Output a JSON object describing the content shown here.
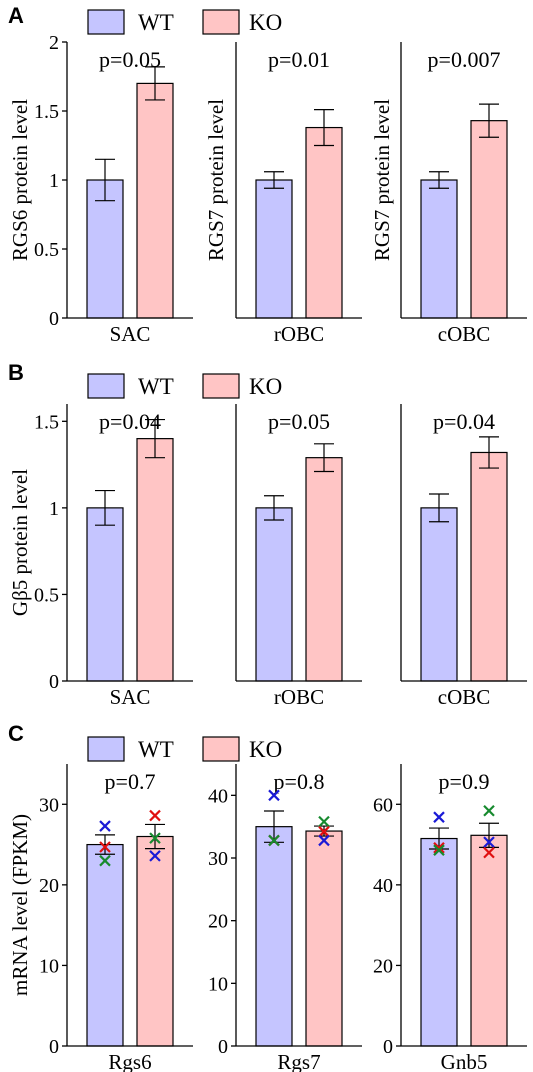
{
  "legend": {
    "wt": "WT",
    "ko": "KO"
  },
  "colors": {
    "wt": "#c5c5ff",
    "ko": "#ffc5c5",
    "x_blue": "#1a1ad6",
    "x_red": "#e01010",
    "x_green": "#178a2e"
  },
  "chart_data": [
    {
      "panel": "A",
      "type": "bar",
      "ylabel": "RGS6 protein level",
      "category": "SAC",
      "pvalue": "p=0.05",
      "ylim": [
        0,
        2
      ],
      "yticks": [
        "0",
        "0.5",
        "1",
        "1.5",
        "2"
      ],
      "series": [
        {
          "name": "WT",
          "value": 1.0,
          "err": 0.15
        },
        {
          "name": "KO",
          "value": 1.7,
          "err": 0.12
        }
      ]
    },
    {
      "panel": "A",
      "type": "bar",
      "ylabel": "RGS7 protein level",
      "category": "rOBC",
      "pvalue": "p=0.01",
      "ylim": [
        0,
        2
      ],
      "series": [
        {
          "name": "WT",
          "value": 1.0,
          "err": 0.06
        },
        {
          "name": "KO",
          "value": 1.38,
          "err": 0.13
        }
      ]
    },
    {
      "panel": "A",
      "type": "bar",
      "ylabel": "RGS7 protein level",
      "category": "cOBC",
      "pvalue": "p=0.007",
      "ylim": [
        0,
        2
      ],
      "series": [
        {
          "name": "WT",
          "value": 1.0,
          "err": 0.06
        },
        {
          "name": "KO",
          "value": 1.43,
          "err": 0.12
        }
      ]
    },
    {
      "panel": "B",
      "type": "bar",
      "ylabel": "Gβ5 protein level",
      "category": "SAC",
      "pvalue": "p=0.04",
      "ylim": [
        0,
        1.6
      ],
      "yticks": [
        "0",
        "0.5",
        "1",
        "1.5"
      ],
      "series": [
        {
          "name": "WT",
          "value": 1.0,
          "err": 0.1
        },
        {
          "name": "KO",
          "value": 1.4,
          "err": 0.11
        }
      ]
    },
    {
      "panel": "B",
      "type": "bar",
      "category": "rOBC",
      "pvalue": "p=0.05",
      "ylim": [
        0,
        1.6
      ],
      "series": [
        {
          "name": "WT",
          "value": 1.0,
          "err": 0.07
        },
        {
          "name": "KO",
          "value": 1.29,
          "err": 0.08
        }
      ]
    },
    {
      "panel": "B",
      "type": "bar",
      "category": "cOBC",
      "pvalue": "p=0.04",
      "ylim": [
        0,
        1.6
      ],
      "series": [
        {
          "name": "WT",
          "value": 1.0,
          "err": 0.08
        },
        {
          "name": "KO",
          "value": 1.32,
          "err": 0.09
        }
      ]
    },
    {
      "panel": "C",
      "type": "bar",
      "ylabel": "mRNA level (FPKM)",
      "category": "Rgs6",
      "pvalue": "p=0.7",
      "ylim": [
        0,
        35
      ],
      "yticks": [
        "0",
        "10",
        "20",
        "30"
      ],
      "series": [
        {
          "name": "WT",
          "value": 25,
          "err": 1.2,
          "points": [
            {
              "y": 27.3,
              "color": "blue"
            },
            {
              "y": 24.7,
              "color": "red"
            },
            {
              "y": 23.0,
              "color": "green"
            }
          ]
        },
        {
          "name": "KO",
          "value": 26,
          "err": 1.5,
          "points": [
            {
              "y": 28.6,
              "color": "red"
            },
            {
              "y": 25.8,
              "color": "green"
            },
            {
              "y": 23.6,
              "color": "blue"
            }
          ]
        }
      ]
    },
    {
      "panel": "C",
      "type": "bar",
      "category": "Rgs7",
      "pvalue": "p=0.8",
      "ylim": [
        0,
        45
      ],
      "yticks": [
        "0",
        "10",
        "20",
        "30",
        "40"
      ],
      "series": [
        {
          "name": "WT",
          "value": 35,
          "err": 2.5,
          "points": [
            {
              "y": 40.0,
              "color": "blue"
            },
            {
              "y": 32.8,
              "color": "red"
            },
            {
              "y": 32.8,
              "color": "green"
            }
          ]
        },
        {
          "name": "KO",
          "value": 34.3,
          "err": 0.8,
          "points": [
            {
              "y": 35.8,
              "color": "green"
            },
            {
              "y": 34.2,
              "color": "red"
            },
            {
              "y": 32.8,
              "color": "blue"
            }
          ]
        }
      ]
    },
    {
      "panel": "C",
      "type": "bar",
      "category": "Gnb5",
      "pvalue": "p=0.9",
      "ylim": [
        0,
        70
      ],
      "yticks": [
        "0",
        "20",
        "40",
        "60"
      ],
      "series": [
        {
          "name": "WT",
          "value": 51.5,
          "err": 2.6,
          "points": [
            {
              "y": 56.8,
              "color": "blue"
            },
            {
              "y": 49.2,
              "color": "red"
            },
            {
              "y": 48.6,
              "color": "green"
            }
          ]
        },
        {
          "name": "KO",
          "value": 52.3,
          "err": 3.0,
          "points": [
            {
              "y": 58.4,
              "color": "green"
            },
            {
              "y": 50.6,
              "color": "blue"
            },
            {
              "y": 48.0,
              "color": "red"
            }
          ]
        }
      ]
    }
  ]
}
